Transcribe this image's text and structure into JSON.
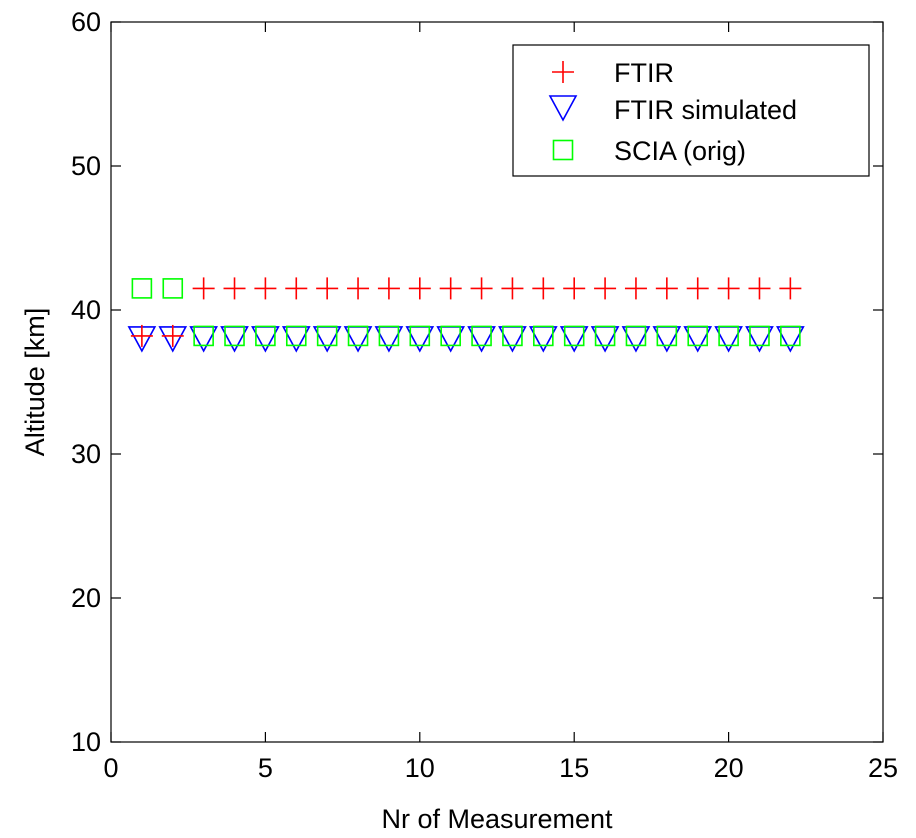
{
  "chart_data": {
    "type": "scatter",
    "xlabel": "Nr of Measurement",
    "ylabel": "Altitude [km]",
    "xlim": [
      0,
      25
    ],
    "ylim": [
      10,
      60
    ],
    "xticks": [
      "0",
      "5",
      "10",
      "15",
      "20",
      "25"
    ],
    "yticks": [
      "10",
      "20",
      "30",
      "40",
      "50",
      "60"
    ],
    "grid": false,
    "legend_position": "top-right",
    "series": [
      {
        "name": "FTIR",
        "marker": "plus",
        "color": "#ff0000",
        "x": [
          1,
          2,
          3,
          4,
          5,
          6,
          7,
          8,
          9,
          10,
          11,
          12,
          13,
          14,
          15,
          16,
          17,
          18,
          19,
          20,
          21,
          22
        ],
        "y": [
          38.2,
          38.2,
          41.5,
          41.5,
          41.5,
          41.5,
          41.5,
          41.5,
          41.5,
          41.5,
          41.5,
          41.5,
          41.5,
          41.5,
          41.5,
          41.5,
          41.5,
          41.5,
          41.5,
          41.5,
          41.5,
          41.5
        ]
      },
      {
        "name": "FTIR simulated",
        "marker": "triangle-down",
        "color": "#0000ff",
        "x": [
          1,
          2,
          3,
          4,
          5,
          6,
          7,
          8,
          9,
          10,
          11,
          12,
          13,
          14,
          15,
          16,
          17,
          18,
          19,
          20,
          21,
          22
        ],
        "y": [
          38.2,
          38.2,
          38.2,
          38.2,
          38.2,
          38.2,
          38.2,
          38.2,
          38.2,
          38.2,
          38.2,
          38.2,
          38.2,
          38.2,
          38.2,
          38.2,
          38.2,
          38.2,
          38.2,
          38.2,
          38.2,
          38.2
        ]
      },
      {
        "name": "SCIA (orig)",
        "marker": "square",
        "color": "#00ff00",
        "x": [
          1,
          2,
          3,
          4,
          5,
          6,
          7,
          8,
          9,
          10,
          11,
          12,
          13,
          14,
          15,
          16,
          17,
          18,
          19,
          20,
          21,
          22
        ],
        "y": [
          41.5,
          41.5,
          38.2,
          38.2,
          38.2,
          38.2,
          38.2,
          38.2,
          38.2,
          38.2,
          38.2,
          38.2,
          38.2,
          38.2,
          38.2,
          38.2,
          38.2,
          38.2,
          38.2,
          38.2,
          38.2,
          38.2
        ]
      }
    ]
  }
}
